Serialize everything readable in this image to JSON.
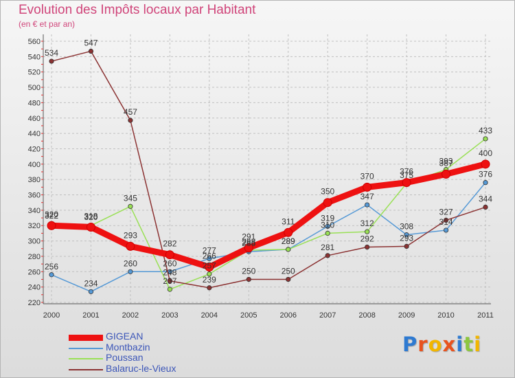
{
  "header": {
    "title": "Evolution des Impôts locaux par Habitant",
    "subtitle": "(en € et par an)"
  },
  "colors": {
    "title": "#d0457a",
    "legend_text": "#3b55b8",
    "axis_text": "#333333",
    "grid": "#c0c0c0",
    "axis_ticks": "#e03030"
  },
  "logo": {
    "letters": [
      {
        "char": "P",
        "color": "#2e7ad1"
      },
      {
        "char": "r",
        "color": "#e8531e"
      },
      {
        "char": "o",
        "color": "#f2b600"
      },
      {
        "char": "x",
        "color": "#e8531e"
      },
      {
        "char": "i",
        "color": "#2e7ad1"
      },
      {
        "char": "t",
        "color": "#8dc63f"
      },
      {
        "char": "i",
        "color": "#f2b600"
      }
    ]
  },
  "chart_data": {
    "type": "line",
    "title": "Evolution des Impôts locaux par Habitant",
    "subtitle": "(en € et par an)",
    "xlabel": "",
    "ylabel": "",
    "ylim": [
      220,
      560
    ],
    "ytick_step": 20,
    "categories": [
      "2000",
      "2001",
      "2002",
      "2003",
      "2004",
      "2005",
      "2006",
      "2007",
      "2008",
      "2009",
      "2010",
      "2011"
    ],
    "grid": true,
    "legend_position": "bottom-left",
    "series": [
      {
        "name": "GIGEAN",
        "color": "#ee1111",
        "emphasis": true,
        "values": [
          320,
          318,
          293,
          282,
          266,
          291,
          311,
          350,
          370,
          376,
          387,
          400
        ],
        "labels": [
          "320",
          "318",
          "293",
          "282",
          "266",
          "291",
          "311",
          "350",
          "370",
          "376",
          "387",
          "400"
        ]
      },
      {
        "name": "Montbazin",
        "color": "#5599d6",
        "emphasis": false,
        "values": [
          256,
          234,
          260,
          260,
          277,
          286,
          289,
          319,
          347,
          308,
          314,
          376
        ],
        "labels": [
          "256",
          "234",
          "260",
          "260",
          "277",
          "286",
          "289",
          "319",
          "347",
          "308",
          "314",
          "376"
        ]
      },
      {
        "name": "Poussan",
        "color": "#99e055",
        "emphasis": false,
        "values": [
          322,
          320,
          345,
          237,
          257,
          288,
          289,
          310,
          312,
          375,
          393,
          433
        ],
        "labels": [
          "322",
          "320",
          "345",
          "237",
          "257",
          "288",
          "289",
          "310",
          "312",
          "375",
          "393",
          "433"
        ]
      },
      {
        "name": "Balaruc-le-Vieux",
        "color": "#8b3232",
        "emphasis": false,
        "values": [
          534,
          547,
          457,
          248,
          239,
          250,
          250,
          281,
          292,
          293,
          327,
          344
        ],
        "labels": [
          "534",
          "547",
          "457",
          "248",
          "239",
          "250",
          "250",
          "281",
          "292",
          "293",
          "327",
          "344"
        ]
      }
    ]
  }
}
